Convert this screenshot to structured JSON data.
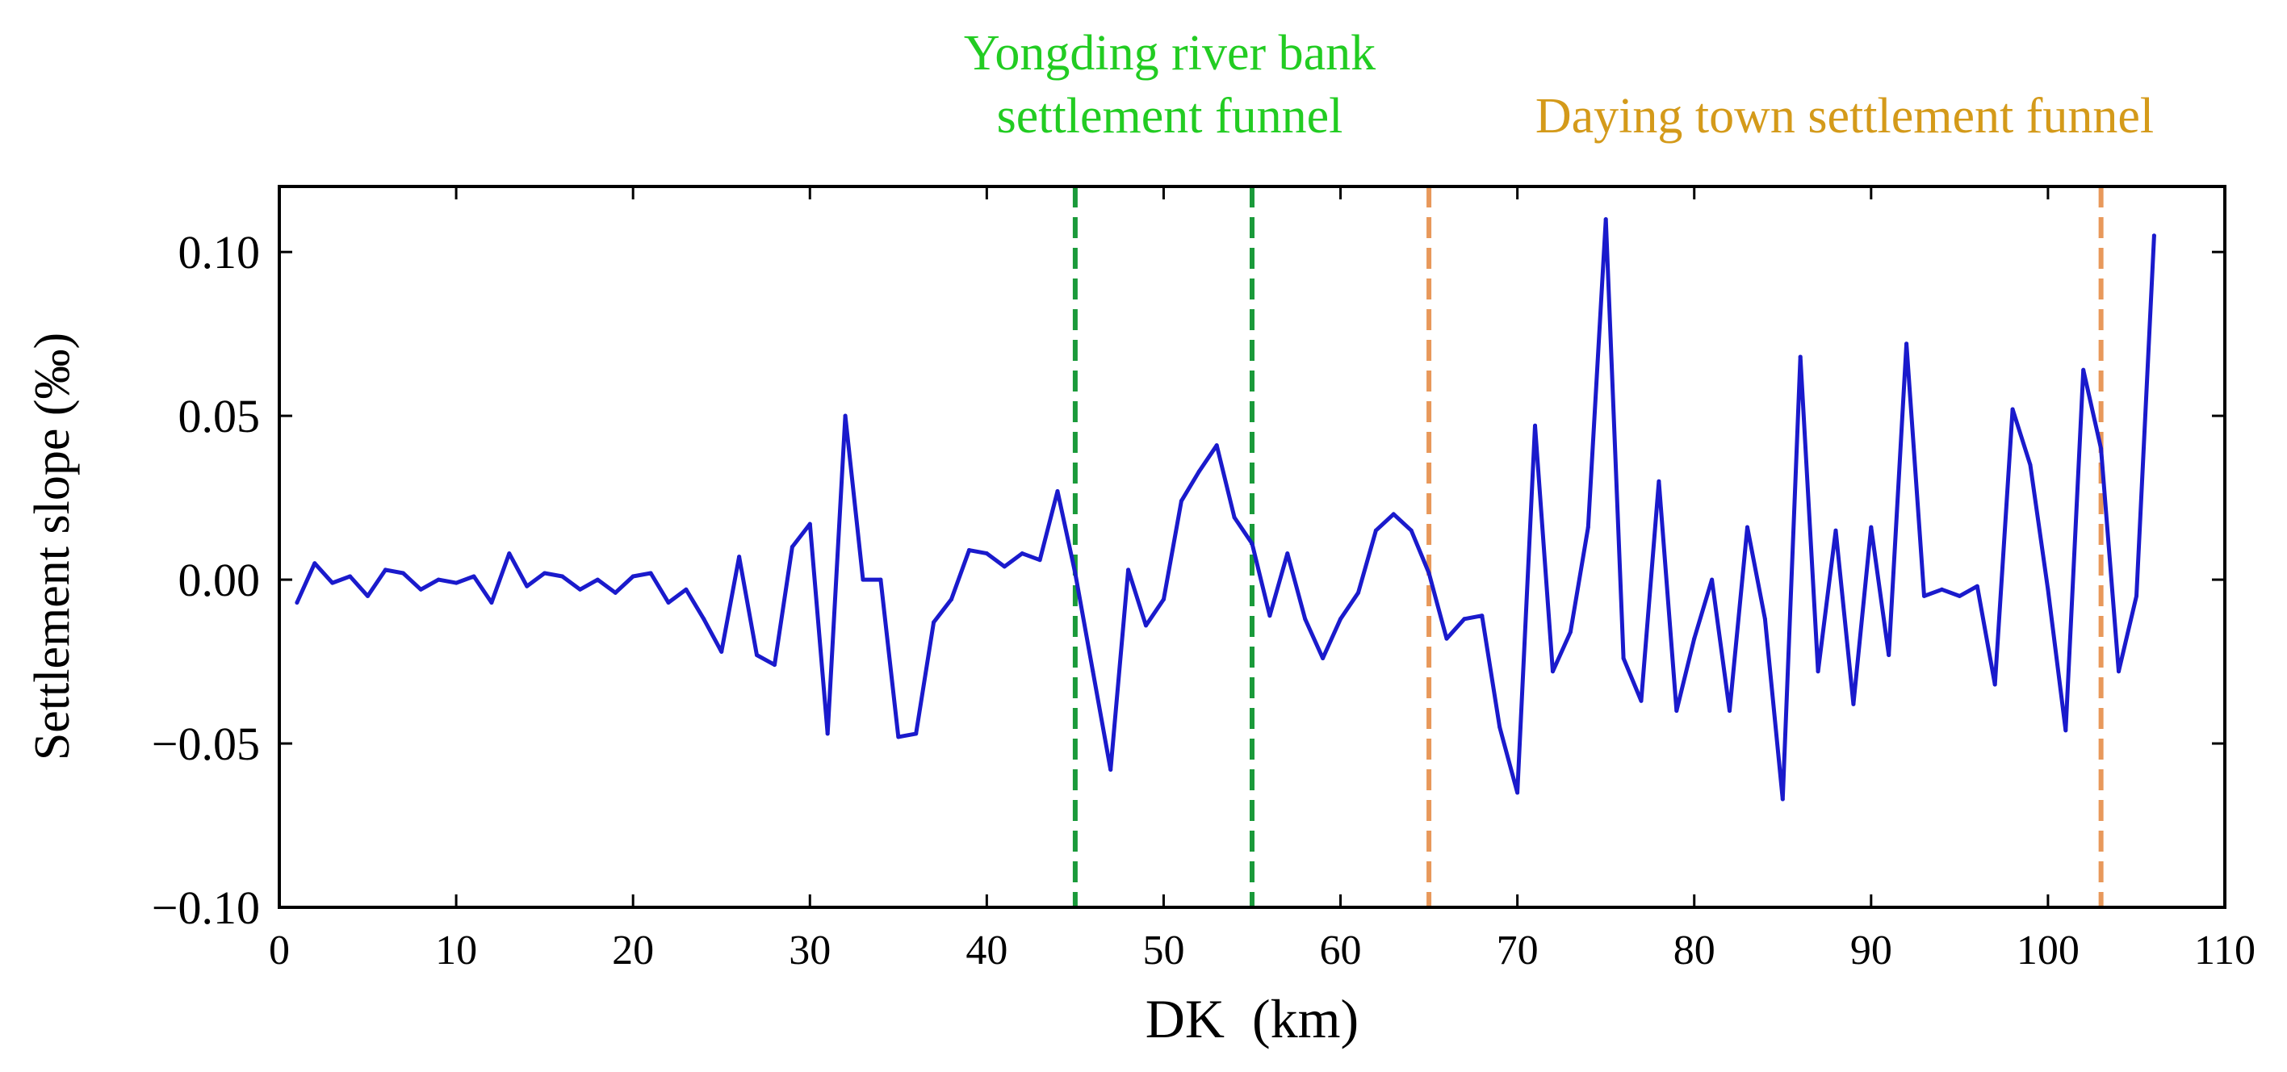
{
  "colors": {
    "background": "#ffffff",
    "axis": "#000000",
    "series": "#1a1acc",
    "funnel_green": "#1a9a3a",
    "funnel_orange": "#e8985a",
    "label_green": "#22cc22",
    "label_orange": "#d49a1a"
  },
  "chart_data": {
    "type": "line",
    "title": "",
    "xlabel": "DK  (km)",
    "ylabel": "Settlement slope (‰)",
    "xlim": [
      0,
      110
    ],
    "ylim": [
      -0.1,
      0.12
    ],
    "xticks": [
      0,
      10,
      20,
      30,
      40,
      50,
      60,
      70,
      80,
      90,
      100,
      110
    ],
    "yticks": [
      -0.1,
      -0.05,
      0.0,
      0.05,
      0.1
    ],
    "xtick_labels": [
      "0",
      "10",
      "20",
      "30",
      "40",
      "50",
      "60",
      "70",
      "80",
      "90",
      "100",
      "110"
    ],
    "ytick_labels": [
      "−0.10",
      "−0.05",
      "0.00",
      "0.05",
      "0.10"
    ],
    "grid": false,
    "series": [
      {
        "name": "Settlement slope",
        "x": [
          1,
          2,
          3,
          4,
          5,
          6,
          7,
          8,
          9,
          10,
          11,
          12,
          13,
          14,
          15,
          16,
          17,
          18,
          19,
          20,
          21,
          22,
          23,
          24,
          25,
          26,
          27,
          28,
          29,
          30,
          31,
          32,
          33,
          34,
          35,
          36,
          37,
          38,
          39,
          40,
          41,
          42,
          43,
          44,
          45,
          46,
          47,
          48,
          49,
          50,
          51,
          52,
          53,
          54,
          55,
          56,
          57,
          58,
          59,
          60,
          61,
          62,
          63,
          64,
          65,
          66,
          67,
          68,
          69,
          70,
          71,
          72,
          73,
          74,
          75,
          76,
          77,
          78,
          79,
          80,
          81,
          82,
          83,
          84,
          85,
          86,
          87,
          88,
          89,
          90,
          91,
          92,
          93,
          94,
          95,
          96,
          97,
          98,
          99,
          100,
          101,
          102,
          103,
          104,
          105,
          106
        ],
        "y": [
          -0.007,
          0.005,
          -0.001,
          0.001,
          -0.005,
          0.003,
          0.002,
          -0.003,
          0.0,
          -0.001,
          0.001,
          -0.007,
          0.008,
          -0.002,
          0.002,
          0.001,
          -0.003,
          0.0,
          -0.004,
          0.001,
          0.002,
          -0.007,
          -0.003,
          -0.012,
          -0.022,
          0.007,
          -0.023,
          -0.026,
          0.01,
          0.017,
          -0.047,
          0.05,
          0.0,
          0.0,
          -0.048,
          -0.047,
          -0.013,
          -0.006,
          0.009,
          0.008,
          0.004,
          0.008,
          0.006,
          0.027,
          0.002,
          -0.028,
          -0.058,
          0.003,
          -0.014,
          -0.006,
          0.024,
          0.033,
          0.041,
          0.019,
          0.011,
          -0.011,
          0.008,
          -0.012,
          -0.024,
          -0.012,
          -0.004,
          0.015,
          0.02,
          0.015,
          0.002,
          -0.018,
          -0.012,
          -0.011,
          -0.045,
          -0.065,
          0.047,
          -0.028,
          -0.016,
          0.016,
          0.11,
          -0.024,
          -0.037,
          0.03,
          -0.04,
          -0.018,
          0.0,
          -0.04,
          0.016,
          -0.012,
          -0.067,
          0.068,
          -0.028,
          0.015,
          -0.038,
          0.016,
          -0.023,
          0.072,
          -0.005,
          -0.003,
          -0.005,
          -0.002,
          -0.032,
          0.052,
          0.035,
          -0.003,
          -0.046,
          0.064,
          0.04,
          -0.028,
          -0.005,
          0.105
        ]
      }
    ],
    "reference_lines": [
      {
        "x": 45,
        "color_key": "funnel_green",
        "group": "Yongding river bank settlement funnel"
      },
      {
        "x": 55,
        "color_key": "funnel_green",
        "group": "Yongding river bank settlement funnel"
      },
      {
        "x": 65,
        "color_key": "funnel_orange",
        "group": "Daying town settlement funnel"
      },
      {
        "x": 103,
        "color_key": "funnel_orange",
        "group": "Daying town settlement funnel"
      }
    ],
    "annotations": {
      "yongding_line1": "Yongding river bank",
      "yongding_line2": "settlement funnel",
      "daying": "Daying town settlement funnel"
    }
  }
}
